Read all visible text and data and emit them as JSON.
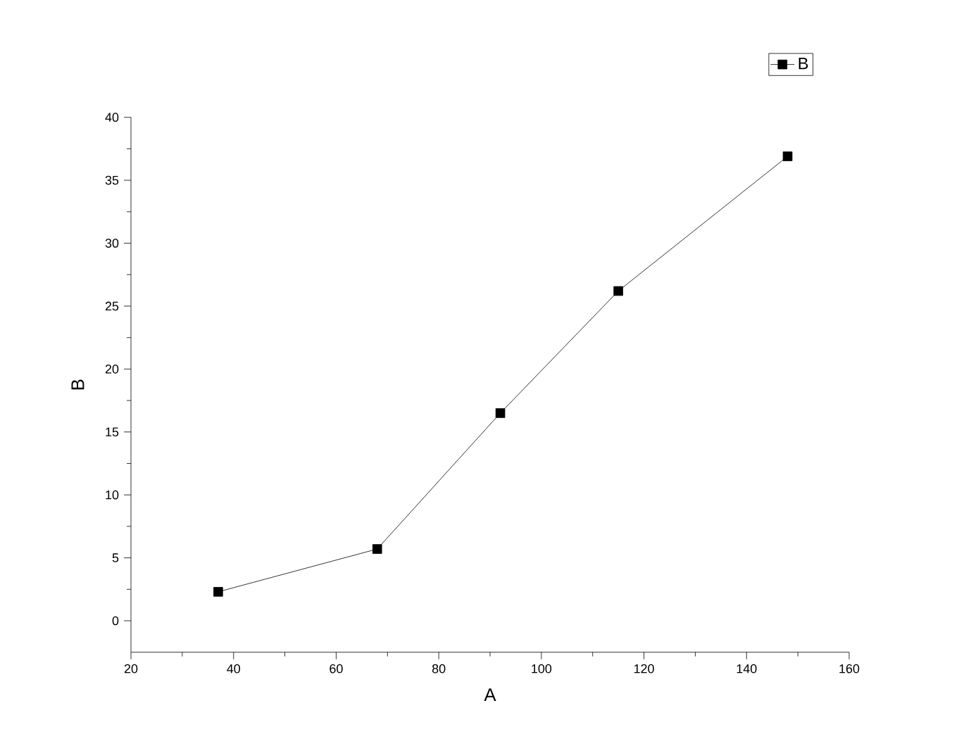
{
  "chart_data": {
    "type": "line",
    "xlabel": "A",
    "ylabel": "B",
    "x": [
      37,
      68,
      92,
      115,
      148
    ],
    "series": [
      {
        "name": "B",
        "color": "#000000",
        "values": [
          2.3,
          5.7,
          16.5,
          26.2,
          36.9
        ]
      }
    ],
    "xlim": [
      20,
      160
    ],
    "xticks": [
      20,
      40,
      60,
      80,
      100,
      120,
      140,
      160
    ],
    "ylim": [
      -2.5,
      40
    ],
    "yticks": [
      0,
      5,
      10,
      15,
      20,
      25,
      30,
      35,
      40
    ],
    "marker": "square",
    "line_style": "solid",
    "legend": "top right",
    "grid": false
  }
}
